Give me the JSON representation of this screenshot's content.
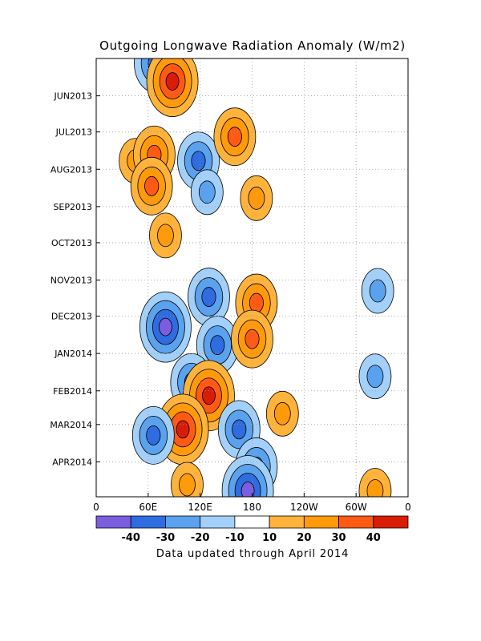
{
  "chart_data": {
    "type": "heatmap",
    "title": "Outgoing Longwave Radiation Anomaly (W/m2)",
    "x_ticks": [
      "0",
      "60E",
      "120E",
      "180",
      "120W",
      "60W",
      "0"
    ],
    "y_ticks": [
      "JUN2013",
      "JUL2013",
      "AUG2013",
      "SEP2013",
      "OCT2013",
      "NOV2013",
      "DEC2013",
      "JAN2014",
      "FEB2014",
      "MAR2014",
      "APR2014"
    ],
    "y_range": [
      "2013-05",
      "2014-04"
    ],
    "grid": true,
    "colorbar": {
      "colors": [
        "#7b5de0",
        "#2e6ce0",
        "#5aa2ee",
        "#a3d0f8",
        "#ffffff",
        "#ffb33b",
        "#ff9a0a",
        "#ff5a14",
        "#d91c06"
      ],
      "labels": [
        "-40",
        "-30",
        "-20",
        "-10",
        "10",
        "20",
        "30",
        "40"
      ]
    },
    "anomaly_blobs": [
      {
        "lon": 68,
        "date": "2013-05-05",
        "value": -30
      },
      {
        "lon": 88,
        "date": "2013-05-20",
        "value": 40
      },
      {
        "lon": 45,
        "date": "2013-07-25",
        "value": 20
      },
      {
        "lon": 67,
        "date": "2013-07-20",
        "value": 30
      },
      {
        "lon": 118,
        "date": "2013-07-25",
        "value": -30
      },
      {
        "lon": 128,
        "date": "2013-08-20",
        "value": -20
      },
      {
        "lon": 64,
        "date": "2013-08-15",
        "value": 30
      },
      {
        "lon": 160,
        "date": "2013-07-05",
        "value": 30
      },
      {
        "lon": 185,
        "date": "2013-08-25",
        "value": 20
      },
      {
        "lon": 80,
        "date": "2013-09-25",
        "value": 20
      },
      {
        "lon": 130,
        "date": "2013-11-15",
        "value": -30
      },
      {
        "lon": 185,
        "date": "2013-11-20",
        "value": 30
      },
      {
        "lon": 80,
        "date": "2013-12-10",
        "value": -40
      },
      {
        "lon": 140,
        "date": "2013-12-25",
        "value": -30
      },
      {
        "lon": 180,
        "date": "2013-12-20",
        "value": 30
      },
      {
        "lon": 110,
        "date": "2014-01-25",
        "value": -30
      },
      {
        "lon": 130,
        "date": "2014-02-05",
        "value": 40
      },
      {
        "lon": 215,
        "date": "2014-02-20",
        "value": 20
      },
      {
        "lon": 100,
        "date": "2014-03-05",
        "value": 40
      },
      {
        "lon": 66,
        "date": "2014-03-10",
        "value": -30
      },
      {
        "lon": 165,
        "date": "2014-03-05",
        "value": -30
      },
      {
        "lon": 185,
        "date": "2014-04-05",
        "value": -30
      },
      {
        "lon": 175,
        "date": "2014-04-25",
        "value": -40
      },
      {
        "lon": 105,
        "date": "2014-04-20",
        "value": 20
      },
      {
        "lon": 322,
        "date": "2014-01-20",
        "value": -20
      },
      {
        "lon": 325,
        "date": "2013-11-10",
        "value": -20
      },
      {
        "lon": 322,
        "date": "2014-04-25",
        "value": 20
      }
    ]
  },
  "footer": "Data updated through April 2014"
}
